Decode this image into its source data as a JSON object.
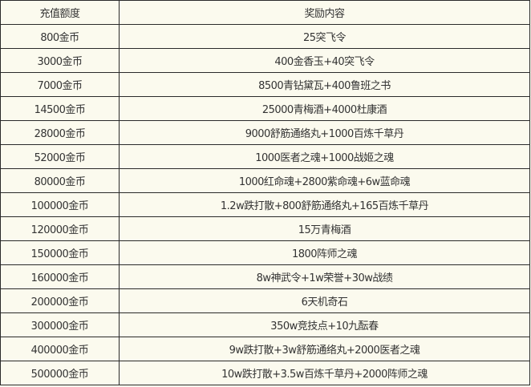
{
  "headers": [
    "充值额度",
    "奖励内容"
  ],
  "rows": [
    [
      "800金币",
      "25突飞令"
    ],
    [
      "3000金币",
      "400金香玉+40突飞令"
    ],
    [
      "7000金币",
      "8500青钻黛瓦+400鲁班之书"
    ],
    [
      "14500金币",
      "25000青梅酒+4000杜康酒"
    ],
    [
      "28000金币",
      "9000舒筋通络丸+1000百炼千草丹"
    ],
    [
      "52000金币",
      "1000医者之魂+1000战姬之魂"
    ],
    [
      "80000金币",
      "1000红命魂+2800紫命魂+6w蓝命魂"
    ],
    [
      "100000金币",
      "1.2w跌打散+800舒筋通络丸+165百炼千草丹"
    ],
    [
      "120000金币",
      "15万青梅酒"
    ],
    [
      "150000金币",
      "1800阵师之魂"
    ],
    [
      "160000金币",
      "8w神武令+1w荣誉+30w战绩"
    ],
    [
      "200000金币",
      "6天机奇石"
    ],
    [
      "300000金币",
      "350w竞技点+10九酝春"
    ],
    [
      "400000金币",
      "9w跌打散+3w舒筋通络丸+2000医者之魂"
    ],
    [
      "500000金币",
      "10w跌打散+3.5w百炼千草丹+2000阵师之魂"
    ]
  ]
}
